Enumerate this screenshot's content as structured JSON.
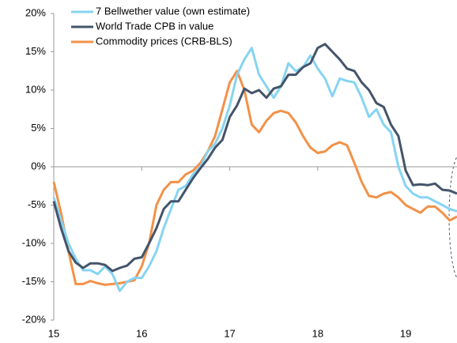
{
  "chart_data": {
    "type": "line",
    "x": [
      15,
      15.083,
      15.167,
      15.25,
      15.333,
      15.417,
      15.5,
      15.583,
      15.667,
      15.75,
      15.833,
      15.917,
      16,
      16.083,
      16.167,
      16.25,
      16.333,
      16.417,
      16.5,
      16.583,
      16.667,
      16.75,
      16.833,
      16.917,
      17,
      17.083,
      17.167,
      17.25,
      17.333,
      17.417,
      17.5,
      17.583,
      17.667,
      17.75,
      17.833,
      17.917,
      18,
      18.083,
      18.167,
      18.25,
      18.333,
      18.417,
      18.5,
      18.583,
      18.667,
      18.75,
      18.833,
      18.917,
      19,
      19.083,
      19.167,
      19.25,
      19.333,
      19.417,
      19.5,
      19.583
    ],
    "series": [
      {
        "name": "7 Bellwether value (own estimate)",
        "color": "#86d4f2",
        "values": [
          -4,
          -7,
          -10,
          -12,
          -13.5,
          -13.5,
          -14,
          -13,
          -14,
          -16.2,
          -15,
          -14.5,
          -14.5,
          -13,
          -11,
          -8,
          -5.5,
          -3,
          -2.5,
          -1,
          0,
          2,
          3,
          5,
          8,
          12,
          14,
          15.5,
          12,
          10.5,
          9,
          10.5,
          13.5,
          12.5,
          13,
          14.5,
          12.8,
          11.5,
          9.2,
          11.5,
          11.2,
          11,
          9,
          6.5,
          7.5,
          5.5,
          4.5,
          0,
          -2.5,
          -3.5,
          -4,
          -4,
          -4.5,
          -5,
          -5.5,
          -5.8
        ]
      },
      {
        "name": "World Trade CPB in value",
        "color": "#44546a",
        "values": [
          -4.5,
          -8,
          -11,
          -12.5,
          -13.2,
          -12.6,
          -12.6,
          -12.8,
          -13.6,
          -13.2,
          -12.9,
          -12,
          -11.8,
          -10,
          -8,
          -5.5,
          -4.5,
          -4.5,
          -3,
          -1.5,
          -0.2,
          1,
          2.5,
          3.5,
          6.5,
          8,
          10.2,
          9.6,
          10,
          9,
          10.2,
          10.5,
          12,
          12,
          13,
          13.5,
          15.5,
          16,
          15,
          14,
          12.8,
          12.5,
          11,
          10,
          8.3,
          7.8,
          5.5,
          4,
          -0.5,
          -2.4,
          -2.3,
          -2.4,
          -2.2,
          -3,
          -3.1,
          -3.5
        ]
      },
      {
        "name": "Commodity prices (CRB-BLS)",
        "color": "#f39148",
        "values": [
          -2,
          -6,
          -11,
          -15.3,
          -15.3,
          -14.9,
          -15.2,
          -15.4,
          -15.3,
          -15.2,
          -15,
          -14.8,
          -13,
          -10,
          -5,
          -3,
          -2,
          -2,
          -1,
          -0.5,
          0.5,
          2,
          4,
          7.5,
          11,
          12.5,
          10,
          5.5,
          4.5,
          6,
          7,
          7.3,
          7,
          5.8,
          4,
          2.5,
          1.8,
          2,
          2.8,
          3.2,
          2.8,
          0.5,
          -2,
          -3.8,
          -4,
          -3.5,
          -3.3,
          -4,
          -5,
          -5.5,
          -6,
          -5.2,
          -5.2,
          -6,
          -7,
          -6.5
        ]
      }
    ],
    "xlim": [
      15,
      19.583
    ],
    "xticks": [
      15,
      16,
      17,
      18,
      19
    ],
    "ylim": [
      -20,
      20
    ],
    "yticks": [
      {
        "value": -20,
        "label": "-20%"
      },
      {
        "value": -15,
        "label": "-15%"
      },
      {
        "value": -10,
        "label": "-10%"
      },
      {
        "value": -5,
        "label": "-5%"
      },
      {
        "value": 0,
        "label": "0%"
      },
      {
        "value": 5,
        "label": "5%"
      },
      {
        "value": 10,
        "label": "10%"
      },
      {
        "value": 15,
        "label": "15%"
      },
      {
        "value": 20,
        "label": "20%"
      }
    ],
    "legend": "upper left"
  }
}
